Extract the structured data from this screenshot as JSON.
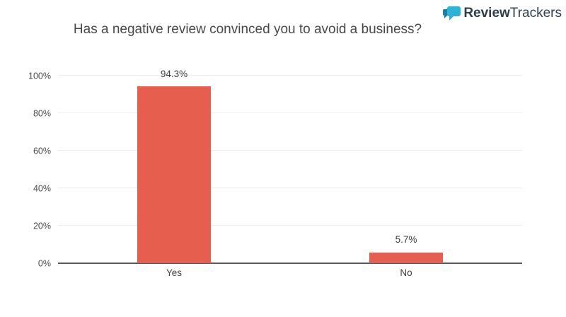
{
  "header": {
    "logo": {
      "icon": "speech-bubbles-icon",
      "text_bold": "Review",
      "text_light": "Trackers",
      "icon_color": "#29b4d8",
      "icon_color_dark": "#1b7fa8",
      "text_color": "#2f3e4e"
    }
  },
  "chart_data": {
    "type": "bar",
    "title": "Has a negative review convinced you to avoid a business?",
    "categories": [
      "Yes",
      "No"
    ],
    "values": [
      94.3,
      5.7
    ],
    "value_labels": [
      "94.3%",
      "5.7%"
    ],
    "yticks": [
      0,
      20,
      40,
      60,
      80,
      100
    ],
    "ytick_labels": [
      "0%",
      "20%",
      "40%",
      "60%",
      "80%",
      "100%"
    ],
    "ylim": [
      0,
      100
    ],
    "xlabel": "",
    "ylabel": "",
    "grid": true,
    "legend": false,
    "bar_color": "#e65e4e",
    "gridline_color": "#efefef",
    "axis_color": "#595a5c",
    "title_color": "#484848"
  }
}
